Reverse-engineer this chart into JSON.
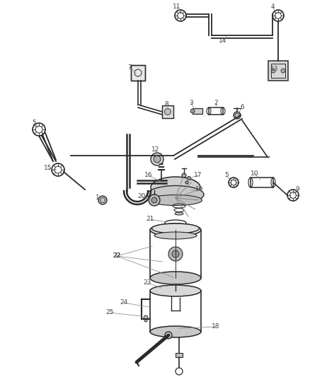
{
  "background_color": "#ffffff",
  "line_color": "#2a2a2a",
  "label_color": "#444444",
  "leader_color": "#888888"
}
